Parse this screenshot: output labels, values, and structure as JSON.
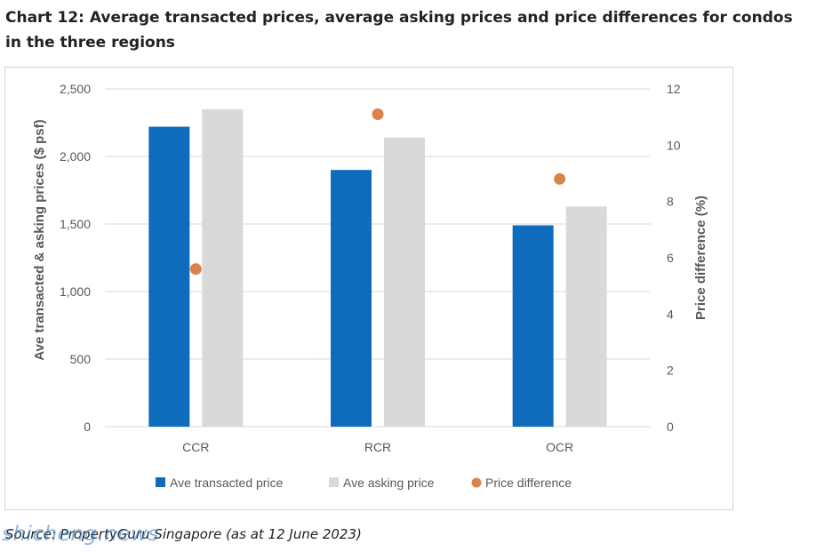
{
  "title": "Chart 12: Average transacted prices, average asking prices and price differences for condos in the three regions",
  "source": "Source: PropertyGuru Singapore (as at 12 June 2023)",
  "watermark": "shicheng.news",
  "colors": {
    "transacted": "#0f6cbd",
    "asking": "#d9d9d9",
    "difference": "#d9834d",
    "grid": "#d9d9d9",
    "axis_text": "#595959"
  },
  "chart_data": {
    "type": "bar",
    "categories": [
      "CCR",
      "RCR",
      "OCR"
    ],
    "series": [
      {
        "name": "Ave transacted price",
        "type": "bar",
        "axis": "left",
        "values": [
          2220,
          1900,
          1490
        ]
      },
      {
        "name": "Ave asking price",
        "type": "bar",
        "axis": "left",
        "values": [
          2350,
          2140,
          1630
        ]
      },
      {
        "name": "Price difference",
        "type": "scatter",
        "axis": "right",
        "values": [
          5.6,
          11.1,
          8.8
        ]
      }
    ],
    "ylabel": "Ave transacted & asking prices ($ psf)",
    "y2label": "Price difference (%)",
    "ylim": [
      0,
      2500
    ],
    "y2lim": [
      0,
      12
    ],
    "yticks": [
      "0",
      "500",
      "1,000",
      "1,500",
      "2,000",
      "2,500"
    ],
    "y2ticks": [
      "0",
      "2",
      "4",
      "6",
      "8",
      "10",
      "12"
    ],
    "grid": true,
    "legend_position": "bottom"
  }
}
